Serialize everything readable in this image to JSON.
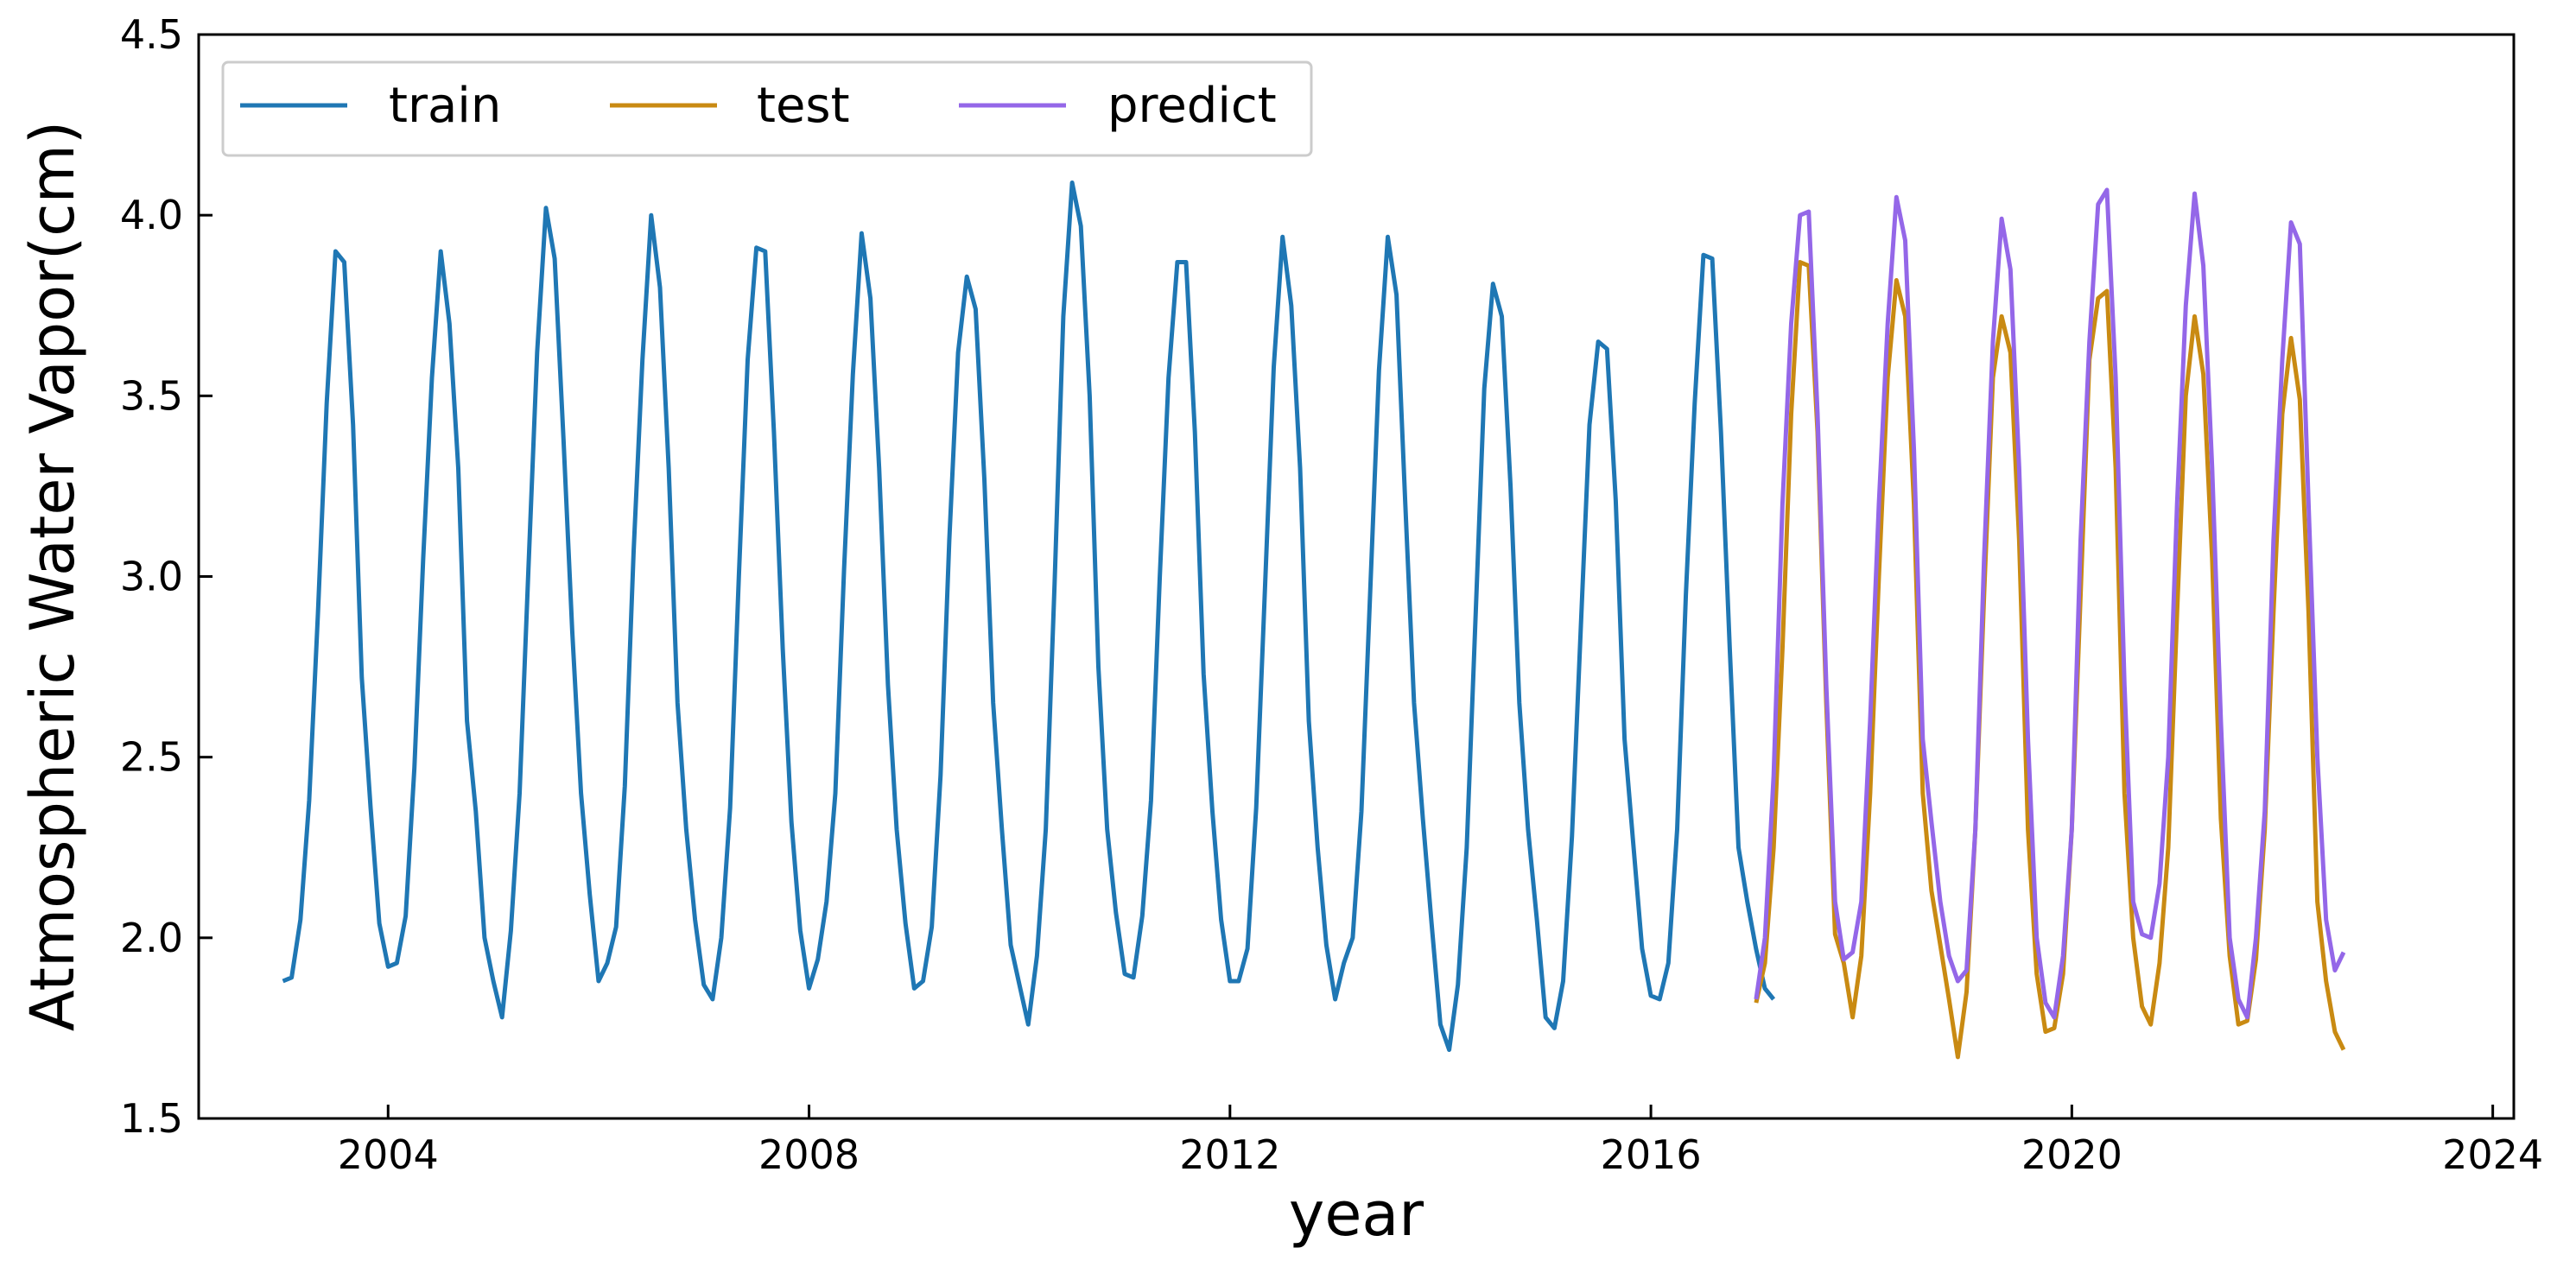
{
  "chart_data": {
    "type": "line",
    "title": "",
    "xlabel": "year",
    "ylabel": "Atmospheric Water Vapor(cm)",
    "xlim": [
      2002.2,
      2024.2
    ],
    "ylim": [
      1.5,
      4.5
    ],
    "xticks": [
      2004,
      2008,
      2012,
      2016,
      2020,
      2024
    ],
    "xtick_labels": [
      "2004",
      "2008",
      "2012",
      "2016",
      "2020",
      "2024"
    ],
    "yticks": [
      1.5,
      2.0,
      2.5,
      3.0,
      3.5,
      4.0,
      4.5
    ],
    "ytick_labels": [
      "1.5",
      "2.0",
      "2.5",
      "3.0",
      "3.5",
      "4.0",
      "4.5"
    ],
    "grid": false,
    "legend": {
      "position": "top-left",
      "orientation": "horizontal"
    },
    "series": [
      {
        "name": "train",
        "color": "#1f77b4",
        "x_start": 2003.0,
        "x_step": 0.08333,
        "values": [
          1.88,
          1.89,
          2.05,
          2.38,
          2.9,
          3.48,
          3.9,
          3.87,
          3.42,
          2.72,
          2.36,
          2.04,
          1.92,
          1.93,
          2.06,
          2.47,
          3.05,
          3.55,
          3.9,
          3.7,
          3.3,
          2.6,
          2.35,
          2.0,
          1.88,
          1.78,
          2.02,
          2.4,
          3.02,
          3.62,
          4.02,
          3.88,
          3.38,
          2.85,
          2.4,
          2.12,
          1.88,
          1.93,
          2.03,
          2.42,
          3.07,
          3.6,
          4.0,
          3.8,
          3.3,
          2.65,
          2.3,
          2.05,
          1.87,
          1.83,
          2.0,
          2.36,
          3.0,
          3.6,
          3.91,
          3.9,
          3.4,
          2.8,
          2.32,
          2.02,
          1.86,
          1.94,
          2.1,
          2.4,
          3.02,
          3.56,
          3.95,
          3.77,
          3.3,
          2.7,
          2.3,
          2.04,
          1.86,
          1.88,
          2.03,
          2.45,
          3.1,
          3.62,
          3.83,
          3.74,
          3.27,
          2.65,
          2.3,
          1.98,
          1.87,
          1.76,
          1.95,
          2.3,
          2.98,
          3.72,
          4.09,
          3.97,
          3.5,
          2.75,
          2.3,
          2.07,
          1.9,
          1.89,
          2.06,
          2.38,
          3.0,
          3.55,
          3.87,
          3.87,
          3.4,
          2.73,
          2.35,
          2.05,
          1.88,
          1.88,
          1.97,
          2.36,
          2.97,
          3.58,
          3.94,
          3.75,
          3.3,
          2.6,
          2.25,
          1.98,
          1.83,
          1.93,
          2.0,
          2.35,
          2.96,
          3.57,
          3.94,
          3.78,
          3.2,
          2.65,
          2.33,
          2.04,
          1.76,
          1.69,
          1.87,
          2.25,
          2.88,
          3.52,
          3.81,
          3.72,
          3.25,
          2.65,
          2.3,
          2.05,
          1.78,
          1.75,
          1.88,
          2.28,
          2.85,
          3.42,
          3.65,
          3.63,
          3.21,
          2.55,
          2.26,
          1.97,
          1.84,
          1.83,
          1.93,
          2.3,
          2.95,
          3.48,
          3.89,
          3.88,
          3.4,
          2.8,
          2.25,
          2.1,
          1.97,
          1.86,
          1.83
        ]
      },
      {
        "name": "test",
        "color": "#c98a12",
        "x_start": 2017.0,
        "x_step": 0.08333,
        "values": [
          1.82,
          1.93,
          2.25,
          2.8,
          3.45,
          3.87,
          3.86,
          3.4,
          2.65,
          2.01,
          1.93,
          1.78,
          1.95,
          2.4,
          3.0,
          3.55,
          3.82,
          3.72,
          3.2,
          2.4,
          2.13,
          1.98,
          1.83,
          1.67,
          1.85,
          2.3,
          2.95,
          3.55,
          3.72,
          3.62,
          3.1,
          2.3,
          1.9,
          1.74,
          1.75,
          1.9,
          2.3,
          2.95,
          3.6,
          3.77,
          3.79,
          3.3,
          2.4,
          2.0,
          1.81,
          1.76,
          1.93,
          2.25,
          2.9,
          3.5,
          3.72,
          3.56,
          3.05,
          2.33,
          1.95,
          1.76,
          1.77,
          1.94,
          2.3,
          2.9,
          3.45,
          3.66,
          3.49,
          2.9,
          2.1,
          1.88,
          1.74,
          1.69
        ]
      },
      {
        "name": "predict",
        "color": "#9467e8",
        "x_start": 2017.0,
        "x_step": 0.08333,
        "values": [
          1.83,
          2.0,
          2.45,
          3.2,
          3.7,
          4.0,
          4.01,
          3.45,
          2.7,
          2.1,
          1.94,
          1.96,
          2.1,
          2.6,
          3.2,
          3.7,
          4.05,
          3.93,
          3.35,
          2.55,
          2.32,
          2.1,
          1.95,
          1.88,
          1.91,
          2.3,
          3.05,
          3.65,
          3.99,
          3.85,
          3.3,
          2.55,
          2.0,
          1.82,
          1.78,
          1.95,
          2.3,
          3.1,
          3.65,
          4.03,
          4.07,
          3.55,
          2.7,
          2.1,
          2.01,
          2.0,
          2.15,
          2.5,
          3.2,
          3.75,
          4.06,
          3.86,
          3.3,
          2.6,
          2.0,
          1.83,
          1.78,
          2.0,
          2.35,
          3.1,
          3.6,
          3.98,
          3.92,
          3.2,
          2.5,
          2.05,
          1.91,
          1.96
        ]
      }
    ]
  }
}
